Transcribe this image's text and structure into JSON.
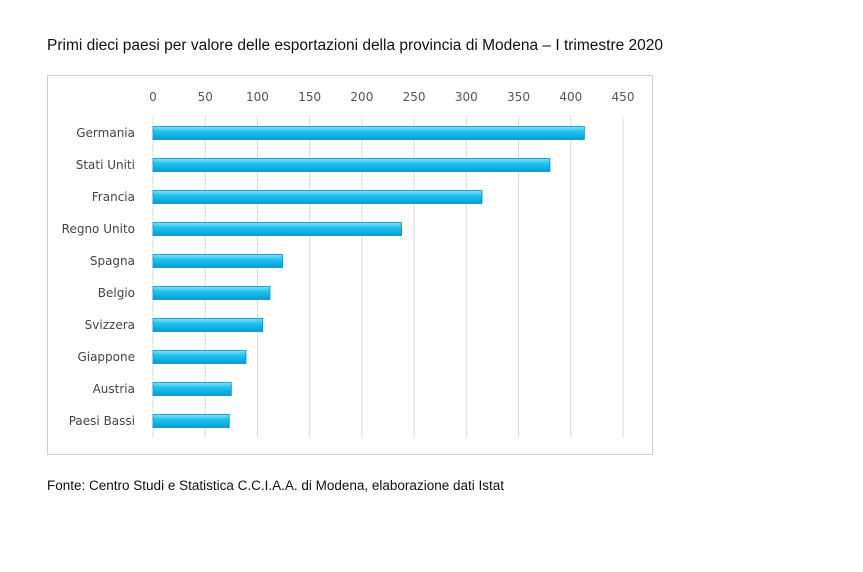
{
  "title": "Primi dieci paesi per valore delle esportazioni della provincia di Modena – I trimestre 2020",
  "source": "Fonte: Centro Studi e Statistica C.C.I.A.A. di Modena, elaborazione dati Istat",
  "colors": {
    "bar": "#22c4f2",
    "bar_dark": "#0a8fc0",
    "grid": "#d9d9d9"
  },
  "chart_data": {
    "type": "bar",
    "orientation": "horizontal",
    "categories": [
      "Germania",
      "Stati Uniti",
      "Francia",
      "Regno Unito",
      "Spagna",
      "Belgio",
      "Svizzera",
      "Giappone",
      "Austria",
      "Paesi Bassi"
    ],
    "values": [
      413,
      380,
      315,
      238,
      124,
      112,
      105,
      89,
      75,
      73
    ],
    "xlim": [
      0,
      450
    ],
    "xticks": [
      "0",
      "50",
      "100",
      "150",
      "200",
      "250",
      "300",
      "350",
      "400",
      "450"
    ],
    "xaxis_position": "top",
    "grid": true,
    "legend": "none"
  }
}
